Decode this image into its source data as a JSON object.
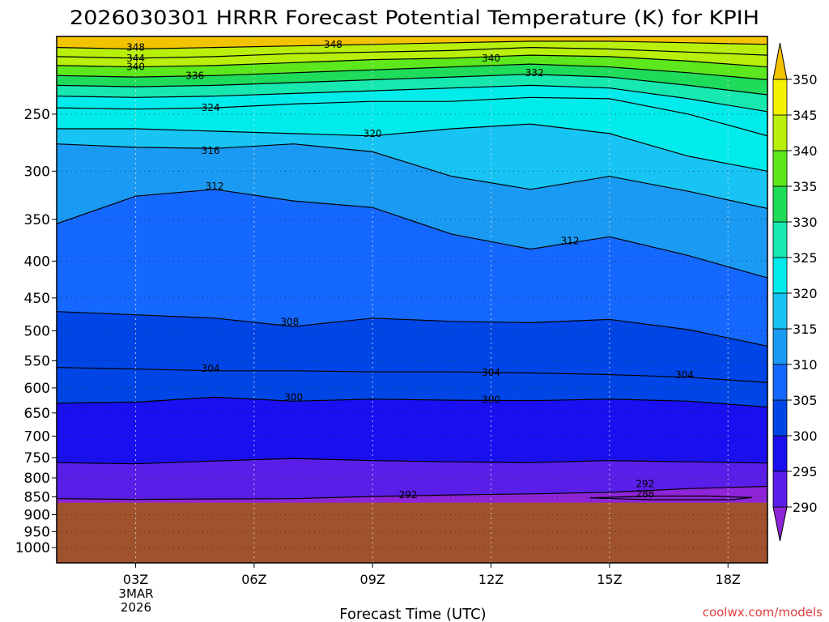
{
  "chart_data": {
    "type": "contour",
    "title": "2026030301 HRRR Forecast Potential Temperature (K) for KPIH",
    "xlabel": "Forecast Time (UTC)",
    "ylabel": "",
    "x_ticks": [
      "03Z",
      "06Z",
      "09Z",
      "12Z",
      "15Z",
      "18Z"
    ],
    "x_tick_hours": [
      3,
      6,
      9,
      12,
      15,
      18
    ],
    "x_range_hours": [
      1,
      19
    ],
    "date_label_lines": [
      "3MAR",
      "2026"
    ],
    "y_scale": "log-pressure",
    "y_range_hPa": [
      1050,
      195
    ],
    "y_ticks": [
      "250",
      "300",
      "350",
      "400",
      "450",
      "500",
      "550",
      "600",
      "650",
      "700",
      "750",
      "800",
      "850",
      "900",
      "950",
      "1000"
    ],
    "y_tick_values": [
      250,
      300,
      350,
      400,
      450,
      500,
      550,
      600,
      650,
      700,
      750,
      800,
      850,
      900,
      950,
      1000
    ],
    "grid": "dotted",
    "terrain_color": "#a0522d",
    "terrain_surface_hPa": 866,
    "colorbar": {
      "levels": [
        290,
        295,
        300,
        305,
        310,
        315,
        320,
        325,
        330,
        335,
        340,
        345,
        350
      ],
      "labels": [
        "290",
        "295",
        "300",
        "305",
        "310",
        "315",
        "320",
        "325",
        "330",
        "335",
        "340",
        "345",
        "350"
      ],
      "colors": [
        "#8e24d8",
        "#5a1ee8",
        "#1a0ff0",
        "#0046e6",
        "#1468ff",
        "#1a9af2",
        "#18c4f4",
        "#00ecec",
        "#16e8b0",
        "#1edc5a",
        "#5ce81c",
        "#b8f00c",
        "#f4f000",
        "#f2c400"
      ]
    },
    "series": [
      {
        "name": "288",
        "x": [
          14.5,
          16,
          17.5,
          18.6,
          18.1,
          16,
          14.5
        ],
        "y": [
          853,
          848,
          848,
          852,
          858,
          858,
          853
        ]
      },
      {
        "name": "292",
        "x": [
          1,
          3,
          5,
          7,
          9,
          11,
          13,
          15,
          17,
          19
        ],
        "y": [
          855,
          857,
          856,
          855,
          849,
          845,
          842,
          838,
          828,
          822
        ]
      },
      {
        "name": "296",
        "x": [
          1,
          3,
          5,
          7,
          9,
          11,
          13,
          15,
          17,
          19
        ],
        "y": [
          762,
          765,
          758,
          752,
          757,
          760,
          762,
          757,
          760,
          763
        ]
      },
      {
        "name": "300",
        "x": [
          1,
          3,
          5,
          7,
          9,
          11,
          13,
          15,
          17,
          19
        ],
        "y": [
          630,
          628,
          618,
          626,
          622,
          624,
          625,
          622,
          626,
          638
        ]
      },
      {
        "name": "304",
        "x": [
          1,
          3,
          5,
          7,
          9,
          11,
          13,
          15,
          17,
          19
        ],
        "y": [
          562,
          565,
          568,
          568,
          570,
          570,
          572,
          575,
          580,
          590
        ]
      },
      {
        "name": "308",
        "x": [
          1,
          3,
          5,
          7,
          9,
          11,
          13,
          15,
          17,
          19
        ],
        "y": [
          470,
          475,
          480,
          493,
          480,
          485,
          487,
          482,
          498,
          525
        ]
      },
      {
        "name": "312",
        "x": [
          1,
          3,
          5,
          7,
          9,
          11,
          13,
          15,
          17,
          19
        ],
        "y": [
          355,
          325,
          318,
          330,
          337,
          367,
          385,
          370,
          393,
          422
        ]
      },
      {
        "name": "316",
        "x": [
          1,
          3,
          5,
          7,
          9,
          11,
          13,
          15,
          17,
          19
        ],
        "y": [
          275,
          278,
          279,
          275,
          282,
          305,
          318,
          305,
          320,
          338
        ]
      },
      {
        "name": "320",
        "x": [
          1,
          3,
          5,
          7,
          9,
          11,
          13,
          15,
          17,
          19
        ],
        "y": [
          262,
          262,
          264,
          266,
          268,
          262,
          258,
          266,
          286,
          300
        ]
      },
      {
        "name": "324",
        "x": [
          1,
          3,
          5,
          7,
          9,
          11,
          13,
          15,
          17,
          19
        ],
        "y": [
          245,
          246,
          245,
          242,
          240,
          240,
          237,
          238,
          250,
          268
        ]
      },
      {
        "name": "328",
        "x": [
          1,
          3,
          5,
          7,
          9,
          11,
          13,
          15,
          17,
          19
        ],
        "y": [
          236,
          237,
          236,
          234,
          232,
          230,
          228,
          230,
          238,
          248
        ]
      },
      {
        "name": "332",
        "x": [
          1,
          3,
          5,
          7,
          9,
          11,
          13,
          15,
          17,
          19
        ],
        "y": [
          228,
          229,
          228,
          226,
          224,
          222,
          220,
          222,
          228,
          235
        ]
      },
      {
        "name": "336",
        "x": [
          1,
          3,
          5,
          7,
          9,
          11,
          13,
          15,
          17,
          19
        ],
        "y": [
          221,
          222,
          221,
          219,
          217,
          215,
          213,
          215,
          219,
          224
        ]
      },
      {
        "name": "340",
        "x": [
          1,
          3,
          5,
          7,
          9,
          11,
          13,
          15,
          17,
          19
        ],
        "y": [
          214,
          215,
          214,
          212,
          210,
          209,
          207,
          208,
          211,
          215
        ]
      },
      {
        "name": "344",
        "x": [
          1,
          3,
          5,
          7,
          9,
          11,
          13,
          15,
          17,
          19
        ],
        "y": [
          208,
          209,
          208,
          206,
          205,
          204,
          202,
          203,
          205,
          207
        ]
      },
      {
        "name": "348",
        "x": [
          1,
          3,
          5,
          7,
          9,
          11,
          13,
          15,
          17,
          19
        ],
        "y": [
          202,
          203,
          202,
          201,
          200,
          199,
          198,
          198,
          199,
          200
        ]
      }
    ],
    "contour_labels": [
      {
        "text": "348",
        "x": 3.0,
        "y": 202
      },
      {
        "text": "348",
        "x": 8.0,
        "y": 200
      },
      {
        "text": "344",
        "x": 3.0,
        "y": 209
      },
      {
        "text": "340",
        "x": 3.0,
        "y": 215
      },
      {
        "text": "340",
        "x": 12.0,
        "y": 209
      },
      {
        "text": "336",
        "x": 4.5,
        "y": 221
      },
      {
        "text": "332",
        "x": 13.1,
        "y": 219
      },
      {
        "text": "324",
        "x": 4.9,
        "y": 245
      },
      {
        "text": "320",
        "x": 9.0,
        "y": 266
      },
      {
        "text": "316",
        "x": 4.9,
        "y": 281
      },
      {
        "text": "312",
        "x": 5.0,
        "y": 315
      },
      {
        "text": "312",
        "x": 14.0,
        "y": 375
      },
      {
        "text": "308",
        "x": 6.9,
        "y": 486
      },
      {
        "text": "304",
        "x": 4.9,
        "y": 564
      },
      {
        "text": "304",
        "x": 12.0,
        "y": 571
      },
      {
        "text": "304",
        "x": 16.9,
        "y": 576
      },
      {
        "text": "300",
        "x": 7.0,
        "y": 618
      },
      {
        "text": "300",
        "x": 12.0,
        "y": 623
      },
      {
        "text": "292",
        "x": 9.9,
        "y": 845
      },
      {
        "text": "292",
        "x": 15.9,
        "y": 816
      },
      {
        "text": "288",
        "x": 15.9,
        "y": 843
      }
    ]
  },
  "credit": "coolwx.com/models"
}
